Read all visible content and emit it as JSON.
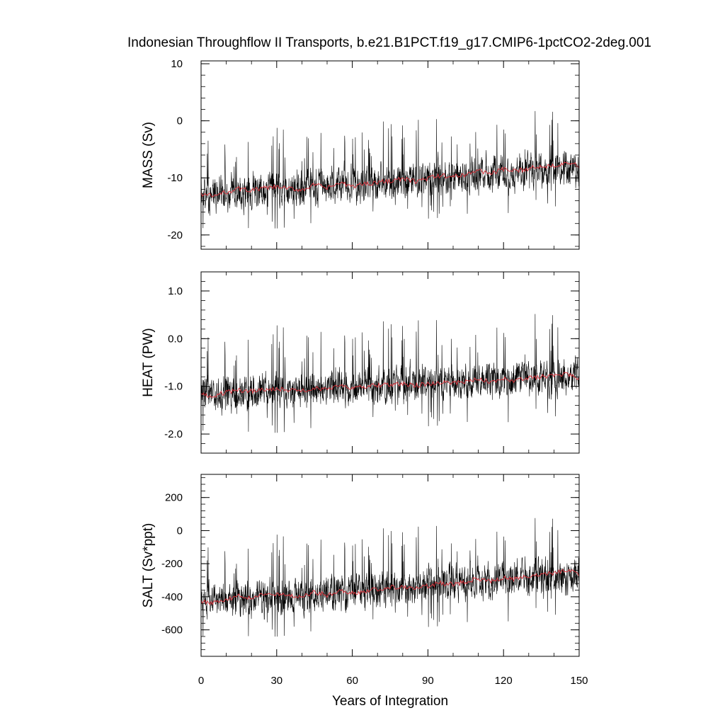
{
  "chart_data": {
    "type": "line",
    "title": "Indonesian Throughflow II Transports, b.e21.B1PCT.f19_g17.CMIP6-1pctCO2-2deg.001",
    "xlabel": "Years of Integration",
    "xlim": [
      0,
      150
    ],
    "xticks": [
      "0",
      "30",
      "60",
      "90",
      "120",
      "150"
    ],
    "xtick_values": [
      0,
      30,
      60,
      90,
      120,
      150
    ],
    "series_colors": {
      "monthly": "#000000",
      "annual": "#e0303a"
    },
    "panels": [
      {
        "id": "mass",
        "ylabel": "MASS (Sv)",
        "ylim": [
          -22.5,
          10.5
        ],
        "yticks": [
          "10",
          "0",
          "-10",
          "-20"
        ],
        "ytick_values": [
          10,
          0,
          -10,
          -20
        ],
        "base_start": -13.0,
        "base_end": -8.3,
        "noise": 2.3,
        "spike_up": 11.0,
        "spike_down": 7.0,
        "annual_points": [
          [
            0,
            -12.8
          ],
          [
            5,
            -13.2
          ],
          [
            10,
            -12.5
          ],
          [
            15,
            -11.9
          ],
          [
            20,
            -12.2
          ],
          [
            25,
            -11.8
          ],
          [
            30,
            -11.6
          ],
          [
            35,
            -11.9
          ],
          [
            40,
            -12.1
          ],
          [
            45,
            -11.2
          ],
          [
            50,
            -11.8
          ],
          [
            55,
            -10.9
          ],
          [
            60,
            -11.5
          ],
          [
            65,
            -11.0
          ],
          [
            70,
            -10.8
          ],
          [
            75,
            -10.5
          ],
          [
            80,
            -10.2
          ],
          [
            85,
            -10.6
          ],
          [
            90,
            -10.1
          ],
          [
            95,
            -9.6
          ],
          [
            100,
            -9.8
          ],
          [
            105,
            -9.4
          ],
          [
            110,
            -8.7
          ],
          [
            115,
            -9.2
          ],
          [
            120,
            -8.5
          ],
          [
            125,
            -8.9
          ],
          [
            130,
            -8.3
          ],
          [
            135,
            -8.0
          ],
          [
            140,
            -7.8
          ],
          [
            145,
            -7.2
          ],
          [
            150,
            -8.0
          ]
        ]
      },
      {
        "id": "heat",
        "ylabel": "HEAT (PW)",
        "ylim": [
          -2.4,
          1.4
        ],
        "yticks": [
          "1.0",
          "0.0",
          "-1.0",
          "-2.0"
        ],
        "ytick_values": [
          1.0,
          0.0,
          -1.0,
          -2.0
        ],
        "base_start": -1.18,
        "base_end": -0.78,
        "noise": 0.27,
        "spike_up": 1.4,
        "spike_down": 0.9,
        "annual_points": [
          [
            0,
            -1.18
          ],
          [
            5,
            -1.2
          ],
          [
            10,
            -1.12
          ],
          [
            15,
            -1.08
          ],
          [
            20,
            -1.1
          ],
          [
            25,
            -1.07
          ],
          [
            30,
            -1.05
          ],
          [
            35,
            -1.08
          ],
          [
            40,
            -1.1
          ],
          [
            45,
            -1.02
          ],
          [
            50,
            -1.08
          ],
          [
            55,
            -0.98
          ],
          [
            60,
            -1.05
          ],
          [
            65,
            -1.0
          ],
          [
            70,
            -0.98
          ],
          [
            75,
            -0.96
          ],
          [
            80,
            -0.94
          ],
          [
            85,
            -0.98
          ],
          [
            90,
            -0.95
          ],
          [
            95,
            -0.92
          ],
          [
            100,
            -0.94
          ],
          [
            105,
            -0.9
          ],
          [
            110,
            -0.86
          ],
          [
            115,
            -0.9
          ],
          [
            120,
            -0.84
          ],
          [
            125,
            -0.88
          ],
          [
            130,
            -0.82
          ],
          [
            135,
            -0.8
          ],
          [
            140,
            -0.79
          ],
          [
            145,
            -0.74
          ],
          [
            150,
            -0.82
          ]
        ]
      },
      {
        "id": "salt",
        "ylabel": "SALT (Sv*ppt)",
        "ylim": [
          -760,
          340
        ],
        "yticks": [
          "200",
          "0",
          "-200",
          "-400",
          "-600"
        ],
        "ytick_values": [
          200,
          0,
          -200,
          -400,
          -600
        ],
        "base_start": -430,
        "base_end": -270,
        "noise": 80,
        "spike_up": 380,
        "spike_down": 250,
        "annual_points": [
          [
            0,
            -430
          ],
          [
            5,
            -440
          ],
          [
            10,
            -415
          ],
          [
            15,
            -395
          ],
          [
            20,
            -405
          ],
          [
            25,
            -390
          ],
          [
            30,
            -385
          ],
          [
            35,
            -395
          ],
          [
            40,
            -400
          ],
          [
            45,
            -370
          ],
          [
            50,
            -390
          ],
          [
            55,
            -360
          ],
          [
            60,
            -380
          ],
          [
            65,
            -365
          ],
          [
            70,
            -355
          ],
          [
            75,
            -345
          ],
          [
            80,
            -335
          ],
          [
            85,
            -350
          ],
          [
            90,
            -335
          ],
          [
            95,
            -318
          ],
          [
            100,
            -325
          ],
          [
            105,
            -310
          ],
          [
            110,
            -288
          ],
          [
            115,
            -305
          ],
          [
            120,
            -282
          ],
          [
            125,
            -295
          ],
          [
            130,
            -275
          ],
          [
            135,
            -266
          ],
          [
            140,
            -258
          ],
          [
            145,
            -240
          ],
          [
            150,
            -265
          ]
        ]
      }
    ]
  }
}
